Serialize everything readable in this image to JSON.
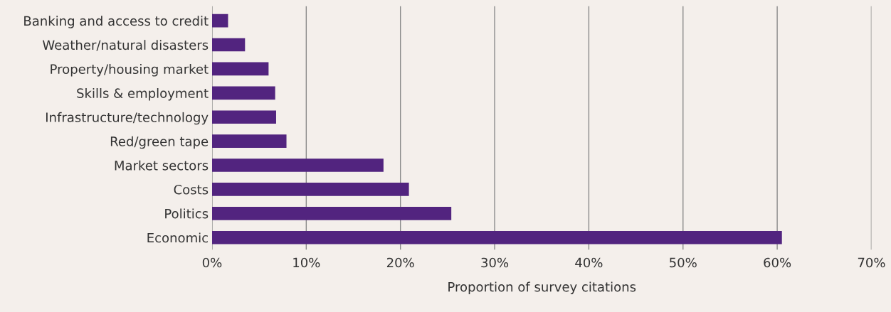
{
  "chart_data": {
    "type": "bar",
    "orientation": "horizontal",
    "xlabel": "Proportion of survey citations",
    "categories": [
      "Banking and access to credit",
      "Weather/natural disasters",
      "Property/housing market",
      "Skills & employment",
      "Infrastructure/technology",
      "Red/green tape",
      "Market sectors",
      "Costs",
      "Politics",
      "Economic"
    ],
    "values": [
      1.7,
      3.5,
      6.0,
      6.7,
      6.8,
      7.9,
      18.2,
      20.9,
      25.4,
      60.5
    ],
    "color": "#52247f",
    "xlim": [
      0,
      70
    ],
    "xticks": [
      {
        "value": 0,
        "label": "0%"
      },
      {
        "value": 10,
        "label": "10%"
      },
      {
        "value": 20,
        "label": "20%"
      },
      {
        "value": 30,
        "label": "30%"
      },
      {
        "value": 40,
        "label": "40%"
      },
      {
        "value": 50,
        "label": "50%"
      },
      {
        "value": 60,
        "label": "60%"
      },
      {
        "value": 70,
        "label": "70%"
      }
    ],
    "grid": "x"
  }
}
